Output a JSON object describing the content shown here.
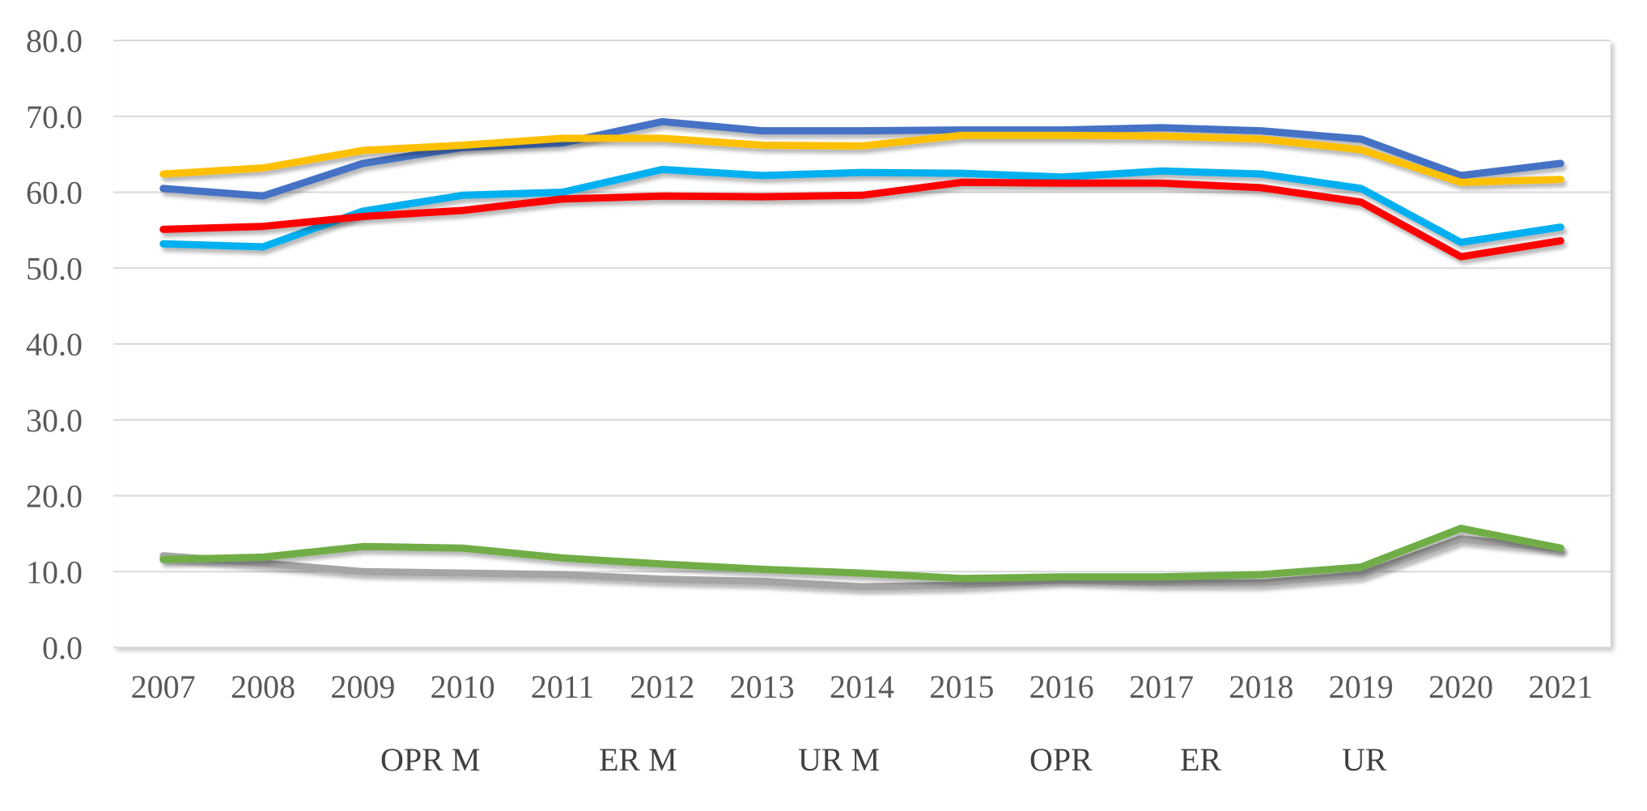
{
  "chart_data": {
    "type": "line",
    "title": "",
    "xlabel": "",
    "ylabel": "",
    "ylim": [
      0,
      80
    ],
    "y_ticks": [
      "0.0",
      "10.0",
      "20.0",
      "30.0",
      "40.0",
      "50.0",
      "60.0",
      "70.0",
      "80.0"
    ],
    "categories": [
      "2007",
      "2008",
      "2009",
      "2010",
      "2011",
      "2012",
      "2013",
      "2014",
      "2015",
      "2016",
      "2017",
      "2018",
      "2019",
      "2020",
      "2021"
    ],
    "grid": true,
    "legend_position": "bottom",
    "series": [
      {
        "name": "OPR M",
        "color": "#4472C4",
        "values": [
          60.5,
          59.5,
          63.8,
          65.9,
          66.5,
          69.3,
          68.1,
          68.1,
          68.2,
          68.2,
          68.5,
          68.1,
          67.0,
          62.2,
          63.8
        ]
      },
      {
        "name": "ER M",
        "color": "#00B0F0",
        "values": [
          53.2,
          52.8,
          57.5,
          59.6,
          60.0,
          63.0,
          62.2,
          62.6,
          62.5,
          62.0,
          62.8,
          62.4,
          60.5,
          53.4,
          55.4
        ]
      },
      {
        "name": "UR M",
        "color": "#A5A5A5",
        "values": [
          12.1,
          11.1,
          10.0,
          9.8,
          9.6,
          9.0,
          8.7,
          8.0,
          8.2,
          8.9,
          8.5,
          8.5,
          9.6,
          14.3,
          13.0
        ]
      },
      {
        "name": "OPR",
        "color": "#FFC000",
        "values": [
          62.4,
          63.2,
          65.5,
          66.2,
          67.1,
          67.1,
          66.2,
          66.1,
          67.5,
          67.5,
          67.4,
          67.0,
          65.6,
          61.3,
          61.7
        ]
      },
      {
        "name": "ER",
        "color": "#FF0000",
        "values": [
          55.1,
          55.5,
          56.8,
          57.6,
          59.1,
          59.5,
          59.4,
          59.6,
          61.3,
          61.2,
          61.2,
          60.6,
          58.7,
          51.5,
          53.6
        ]
      },
      {
        "name": "UR",
        "color": "#70AD47",
        "values": [
          11.6,
          11.9,
          13.3,
          13.1,
          11.8,
          11.0,
          10.3,
          9.8,
          9.1,
          9.3,
          9.3,
          9.6,
          10.6,
          15.7,
          13.1
        ]
      }
    ]
  }
}
